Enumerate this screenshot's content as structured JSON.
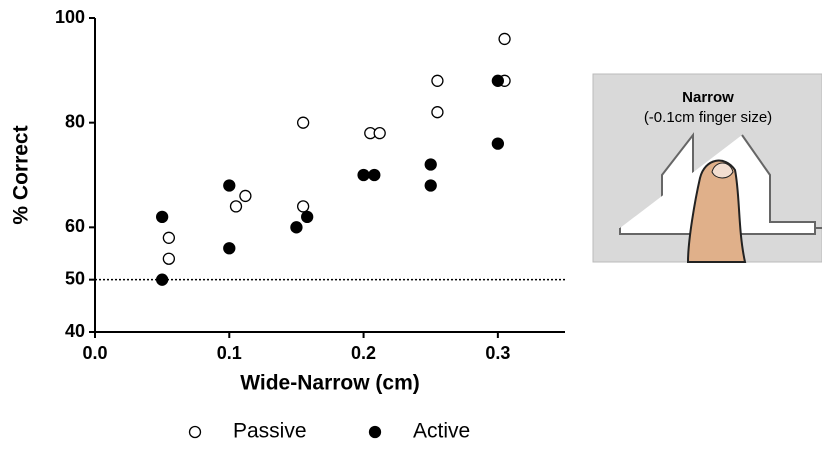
{
  "chart_data": {
    "type": "scatter",
    "xlabel": "Wide-Narrow (cm)",
    "ylabel": "% Correct",
    "xlim": [
      0,
      0.35
    ],
    "xticks": [
      {
        "value": 0,
        "label": "0.0"
      },
      0.1,
      0.2,
      0.3
    ],
    "ylim": [
      40,
      100
    ],
    "yticks": [
      40,
      50,
      60,
      80,
      100
    ],
    "reference_line": 50,
    "series": [
      {
        "name": "Passive",
        "color": "#000000",
        "marker": "open",
        "x": [
          0.055,
          0.055,
          0.105,
          0.112,
          0.155,
          0.155,
          0.205,
          0.212,
          0.255,
          0.255,
          0.305,
          0.305
        ],
        "values": [
          58,
          54,
          64,
          66,
          80,
          64,
          78,
          78,
          88,
          82,
          96,
          88
        ]
      },
      {
        "name": "Active",
        "color": "#000000",
        "marker": "filled",
        "x": [
          0.05,
          0.05,
          0.1,
          0.1,
          0.15,
          0.158,
          0.2,
          0.208,
          0.25,
          0.25,
          0.3,
          0.3
        ],
        "values": [
          62,
          50,
          68,
          56,
          60,
          62,
          70,
          70,
          72,
          68,
          88,
          76
        ]
      }
    ]
  },
  "inset": {
    "title": "Narrow",
    "caption": "(-0.1cm finger size)"
  }
}
